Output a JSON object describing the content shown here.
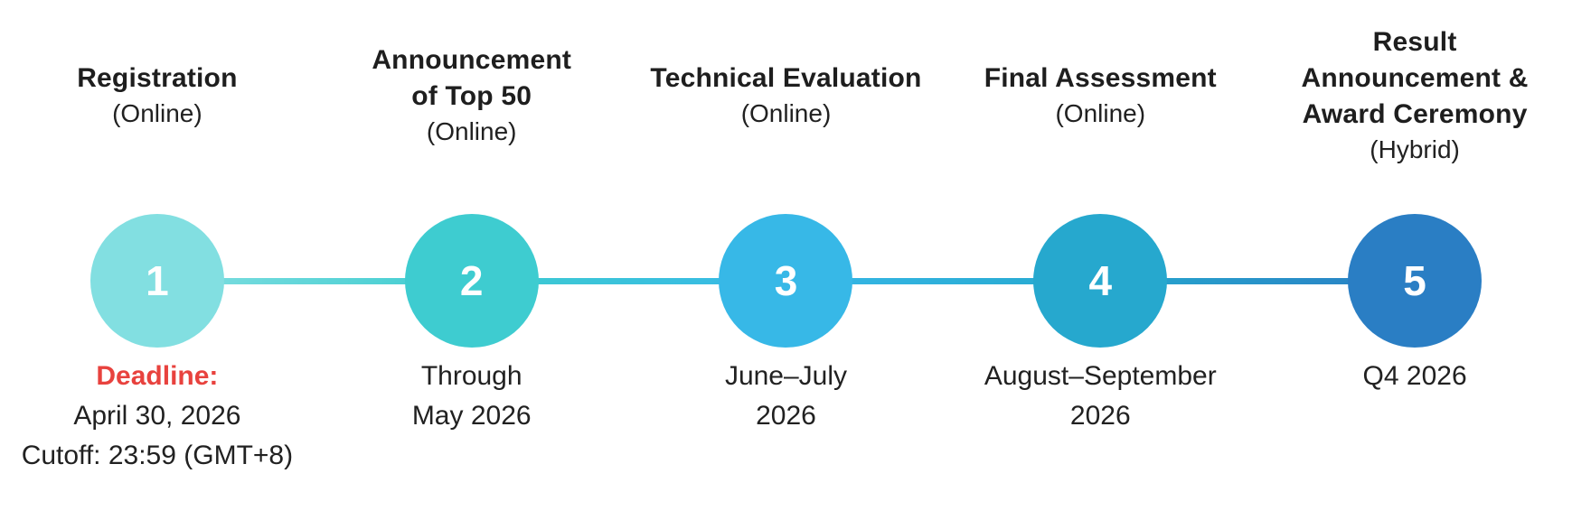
{
  "page": {
    "background": "#FFFFFF"
  },
  "colors": {
    "deadline_red": "#E8423E",
    "text": "#1E1E1E",
    "number_text": "#FFFFFF"
  },
  "timeline": {
    "steps": [
      {
        "number": "1",
        "title": "Registration",
        "mode": "(Online)",
        "circle_color": "#82DFE1",
        "deadline_label": "Deadline:",
        "schedule": "April 30, 2026\nCutoff: 23:59 (GMT+8)"
      },
      {
        "number": "2",
        "title": "Announcement\nof Top 50",
        "mode": "(Online)",
        "circle_color": "#3ECCD0",
        "schedule": "Through\nMay 2026"
      },
      {
        "number": "3",
        "title": "Technical Evaluation",
        "mode": "(Online)",
        "circle_color": "#37B8E7",
        "schedule": "June–July\n2026"
      },
      {
        "number": "4",
        "title": "Final Assessment",
        "mode": "(Online)",
        "circle_color": "#26A8CE",
        "schedule": "August–September\n2026"
      },
      {
        "number": "5",
        "title": "Result\nAnnouncement &\nAward Ceremony",
        "mode": "(Hybrid)",
        "circle_color": "#2A7EC4",
        "schedule": "Q4 2026"
      }
    ]
  }
}
